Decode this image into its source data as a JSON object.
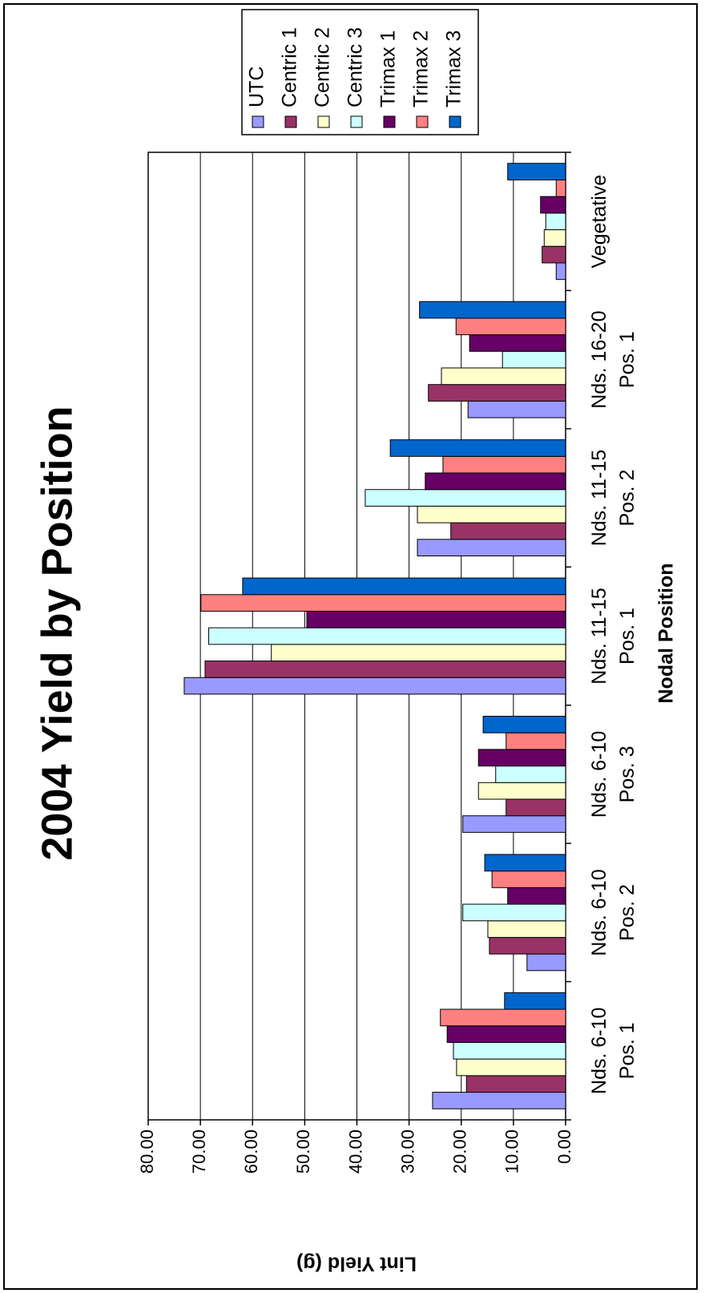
{
  "chart_data": {
    "type": "bar",
    "title": "2004 Yield by Position",
    "x_label": "Nodal Position",
    "y_label": "Lint Yield (g)",
    "categories": [
      [
        "Nds. 6-10",
        "Pos. 1"
      ],
      [
        "Nds. 6-10",
        "Pos. 2"
      ],
      [
        "Nds. 6-10",
        "Pos. 3"
      ],
      [
        "Nds. 11-15",
        "Pos. 1"
      ],
      [
        "Nds. 11-15",
        "Pos. 2"
      ],
      [
        "Nds. 16-20",
        "Pos. 1"
      ],
      [
        "Vegetative"
      ]
    ],
    "series": [
      {
        "name": "UTC",
        "color": "#9999ff",
        "values": [
          25.5,
          7.4,
          19.7,
          73.1,
          28.4,
          18.7,
          1.8
        ]
      },
      {
        "name": "Centric 1",
        "color": "#993366",
        "values": [
          19.0,
          14.6,
          11.4,
          69.1,
          22.0,
          26.3,
          4.5
        ]
      },
      {
        "name": "Centric 2",
        "color": "#ffffcc",
        "values": [
          20.9,
          14.9,
          16.7,
          56.4,
          28.4,
          23.8,
          4.1
        ]
      },
      {
        "name": "Centric 3",
        "color": "#ccffff",
        "values": [
          21.5,
          19.7,
          13.4,
          68.4,
          38.4,
          12.1,
          3.8
        ]
      },
      {
        "name": "Trimax 1",
        "color": "#660066",
        "values": [
          22.7,
          11.1,
          16.7,
          49.6,
          26.9,
          18.4,
          4.8
        ]
      },
      {
        "name": "Trimax 2",
        "color": "#ff8080",
        "values": [
          24.0,
          14.1,
          11.4,
          69.9,
          23.5,
          21.0,
          1.8
        ]
      },
      {
        "name": "Trimax 3",
        "color": "#0066cc",
        "values": [
          11.7,
          15.5,
          15.8,
          61.9,
          33.6,
          28.0,
          11.1
        ]
      }
    ],
    "ylim": [
      0,
      80
    ],
    "yticks": [
      {
        "value": 0,
        "label": "0.00"
      },
      {
        "value": 10,
        "label": "10.00"
      },
      {
        "value": 20,
        "label": "20.00"
      },
      {
        "value": 30,
        "label": "30.00"
      },
      {
        "value": 40,
        "label": "40.00"
      },
      {
        "value": 50,
        "label": "50.00"
      },
      {
        "value": 60,
        "label": "60.00"
      },
      {
        "value": 70,
        "label": "70.00"
      },
      {
        "value": 80,
        "label": "80.00"
      }
    ],
    "grid": true,
    "legend": "top-right"
  }
}
